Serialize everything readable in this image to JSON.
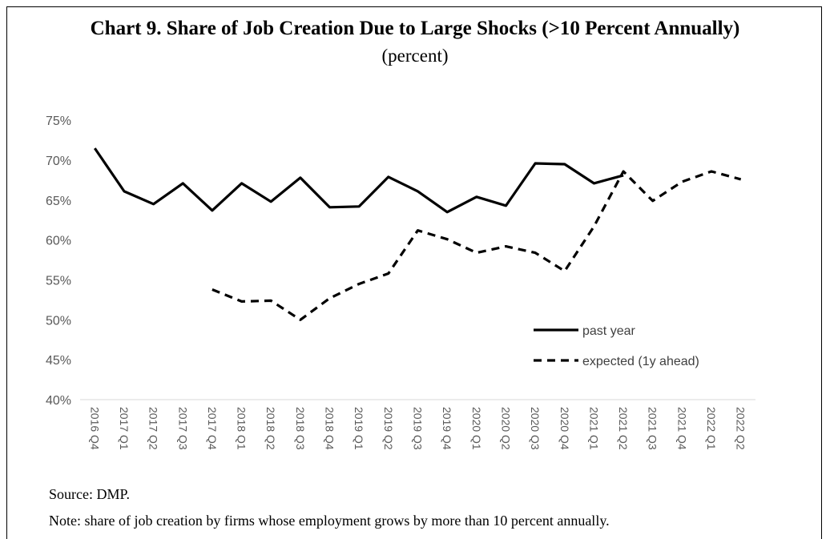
{
  "chart_data": {
    "type": "line",
    "title": "Chart 9. Share of Job Creation Due to Large Shocks (>10 Percent Annually)",
    "subtitle": "(percent)",
    "categories": [
      "2016 Q4",
      "2017 Q1",
      "2017 Q2",
      "2017 Q3",
      "2017 Q4",
      "2018 Q1",
      "2018 Q2",
      "2018 Q3",
      "2018 Q4",
      "2019 Q1",
      "2019 Q2",
      "2019 Q3",
      "2019 Q4",
      "2020 Q1",
      "2020 Q2",
      "2020 Q3",
      "2020 Q4",
      "2021 Q1",
      "2021 Q2",
      "2021 Q3",
      "2021 Q4",
      "2022 Q1",
      "2022 Q2"
    ],
    "y_ticks": [
      "40%",
      "45%",
      "50%",
      "55%",
      "60%",
      "65%",
      "70%",
      "75%"
    ],
    "ylim": [
      40,
      75
    ],
    "legend_position": "lower-right",
    "series": [
      {
        "name": "past year",
        "style": "solid",
        "values": [
          71.5,
          66.1,
          64.5,
          67.1,
          63.7,
          67.1,
          64.8,
          67.8,
          64.1,
          64.2,
          67.9,
          66.1,
          63.5,
          65.4,
          64.3,
          69.6,
          69.5,
          67.1,
          68.1,
          null,
          null,
          null,
          null
        ]
      },
      {
        "name": "expected (1y ahead)",
        "style": "dashed",
        "values": [
          null,
          null,
          null,
          null,
          53.8,
          52.3,
          52.4,
          50.0,
          52.7,
          54.5,
          55.8,
          61.2,
          60.1,
          58.4,
          59.2,
          58.4,
          56.1,
          61.7,
          68.6,
          64.9,
          67.3,
          68.6,
          67.6
        ]
      }
    ],
    "line_color": "#000000",
    "axis_color": "#d9d9d9"
  },
  "footer": {
    "source": "Source: DMP.",
    "note": "Note: share of job creation by firms whose employment grows by more than 10 percent annually."
  }
}
